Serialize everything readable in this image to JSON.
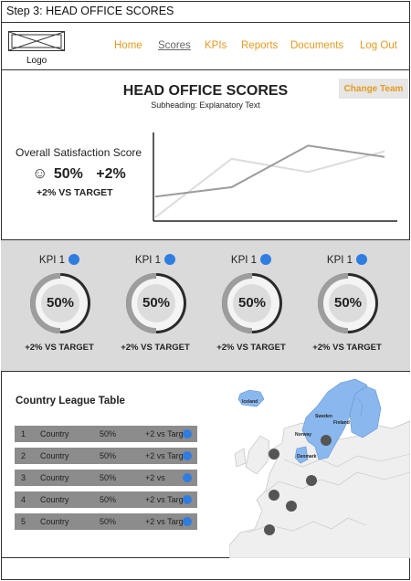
{
  "step_title": "Step 3: HEAD OFFICE SCORES",
  "logo_label": "Logo",
  "nav": [
    "Home",
    "Scores",
    "KPIs",
    "Reports",
    "Documents",
    "Log Out"
  ],
  "active_nav": "Scores",
  "colors": {
    "accent": "#e39a1e",
    "kpi_dot": "#2f7de1",
    "panel": "#dadada",
    "row": "#8c8c8c"
  },
  "page": {
    "title": "HEAD OFFICE SCORES",
    "subtitle": "Subheading: Explanatory Text"
  },
  "change_team_label": "Change Team",
  "satisfaction": {
    "label": "Overall Satisfaction Score",
    "icon": "smiley-icon",
    "score": "50%",
    "delta": "+2%",
    "target": "+2% VS TARGET"
  },
  "chart_data": {
    "type": "line",
    "title": "",
    "xlabel": "",
    "ylabel": "",
    "x": [
      1,
      2,
      3,
      4
    ],
    "series": [
      {
        "values": [
          1.2,
          1.7,
          3.9,
          3.3
        ]
      },
      {
        "values": [
          0.1,
          3.2,
          2.5,
          3.6
        ]
      }
    ],
    "ylim": [
      0,
      4.5
    ],
    "grid": false,
    "legend": false
  },
  "kpis": [
    {
      "label": "KPI 1",
      "value": "50%",
      "percent": 50,
      "target": "+2% VS TARGET"
    },
    {
      "label": "KPI 1",
      "value": "50%",
      "percent": 50,
      "target": "+2% VS TARGET"
    },
    {
      "label": "KPI 1",
      "value": "50%",
      "percent": 50,
      "target": "+2% VS TARGET"
    },
    {
      "label": "KPI 1",
      "value": "50%",
      "percent": 50,
      "target": "+2% VS TARGET"
    }
  ],
  "league": {
    "title": "Country League Table",
    "rows": [
      {
        "rank": "1",
        "country": "Country",
        "score": "50%",
        "vs": "+2 vs Targe"
      },
      {
        "rank": "2",
        "country": "Country",
        "score": "50%",
        "vs": "+2 vs Targe"
      },
      {
        "rank": "3",
        "country": "Country",
        "score": "50%",
        "vs": "+2 vs"
      },
      {
        "rank": "4",
        "country": "Country",
        "score": "50%",
        "vs": "+2 vs Targe"
      },
      {
        "rank": "5",
        "country": "Country",
        "score": "50%",
        "vs": "+2 vs Targe"
      }
    ]
  },
  "map": {
    "labels": [
      "Iceland",
      "Sweden",
      "Finland",
      "Norway",
      "Denmark"
    ]
  }
}
